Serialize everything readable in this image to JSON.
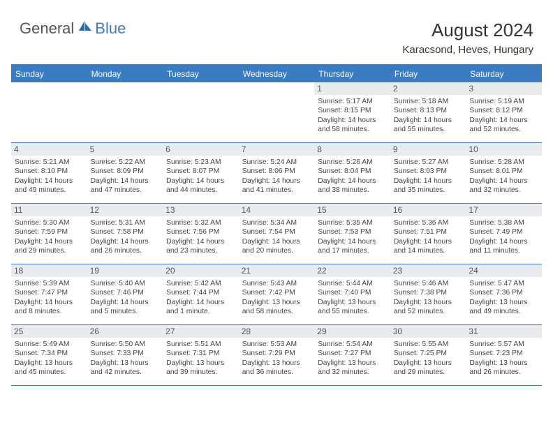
{
  "logo": {
    "part1": "General",
    "part2": "Blue"
  },
  "title": "August 2024",
  "subtitle": "Karacsond, Heves, Hungary",
  "colors": {
    "accent": "#3b7bbf",
    "daynum_bg": "#e9ecef",
    "text": "#444444",
    "title_text": "#333333"
  },
  "day_names": [
    "Sunday",
    "Monday",
    "Tuesday",
    "Wednesday",
    "Thursday",
    "Friday",
    "Saturday"
  ],
  "weeks": [
    [
      null,
      null,
      null,
      null,
      {
        "n": "1",
        "sr": "Sunrise: 5:17 AM",
        "ss": "Sunset: 8:15 PM",
        "dl": "Daylight: 14 hours and 58 minutes."
      },
      {
        "n": "2",
        "sr": "Sunrise: 5:18 AM",
        "ss": "Sunset: 8:13 PM",
        "dl": "Daylight: 14 hours and 55 minutes."
      },
      {
        "n": "3",
        "sr": "Sunrise: 5:19 AM",
        "ss": "Sunset: 8:12 PM",
        "dl": "Daylight: 14 hours and 52 minutes."
      }
    ],
    [
      {
        "n": "4",
        "sr": "Sunrise: 5:21 AM",
        "ss": "Sunset: 8:10 PM",
        "dl": "Daylight: 14 hours and 49 minutes."
      },
      {
        "n": "5",
        "sr": "Sunrise: 5:22 AM",
        "ss": "Sunset: 8:09 PM",
        "dl": "Daylight: 14 hours and 47 minutes."
      },
      {
        "n": "6",
        "sr": "Sunrise: 5:23 AM",
        "ss": "Sunset: 8:07 PM",
        "dl": "Daylight: 14 hours and 44 minutes."
      },
      {
        "n": "7",
        "sr": "Sunrise: 5:24 AM",
        "ss": "Sunset: 8:06 PM",
        "dl": "Daylight: 14 hours and 41 minutes."
      },
      {
        "n": "8",
        "sr": "Sunrise: 5:26 AM",
        "ss": "Sunset: 8:04 PM",
        "dl": "Daylight: 14 hours and 38 minutes."
      },
      {
        "n": "9",
        "sr": "Sunrise: 5:27 AM",
        "ss": "Sunset: 8:03 PM",
        "dl": "Daylight: 14 hours and 35 minutes."
      },
      {
        "n": "10",
        "sr": "Sunrise: 5:28 AM",
        "ss": "Sunset: 8:01 PM",
        "dl": "Daylight: 14 hours and 32 minutes."
      }
    ],
    [
      {
        "n": "11",
        "sr": "Sunrise: 5:30 AM",
        "ss": "Sunset: 7:59 PM",
        "dl": "Daylight: 14 hours and 29 minutes."
      },
      {
        "n": "12",
        "sr": "Sunrise: 5:31 AM",
        "ss": "Sunset: 7:58 PM",
        "dl": "Daylight: 14 hours and 26 minutes."
      },
      {
        "n": "13",
        "sr": "Sunrise: 5:32 AM",
        "ss": "Sunset: 7:56 PM",
        "dl": "Daylight: 14 hours and 23 minutes."
      },
      {
        "n": "14",
        "sr": "Sunrise: 5:34 AM",
        "ss": "Sunset: 7:54 PM",
        "dl": "Daylight: 14 hours and 20 minutes."
      },
      {
        "n": "15",
        "sr": "Sunrise: 5:35 AM",
        "ss": "Sunset: 7:53 PM",
        "dl": "Daylight: 14 hours and 17 minutes."
      },
      {
        "n": "16",
        "sr": "Sunrise: 5:36 AM",
        "ss": "Sunset: 7:51 PM",
        "dl": "Daylight: 14 hours and 14 minutes."
      },
      {
        "n": "17",
        "sr": "Sunrise: 5:38 AM",
        "ss": "Sunset: 7:49 PM",
        "dl": "Daylight: 14 hours and 11 minutes."
      }
    ],
    [
      {
        "n": "18",
        "sr": "Sunrise: 5:39 AM",
        "ss": "Sunset: 7:47 PM",
        "dl": "Daylight: 14 hours and 8 minutes."
      },
      {
        "n": "19",
        "sr": "Sunrise: 5:40 AM",
        "ss": "Sunset: 7:46 PM",
        "dl": "Daylight: 14 hours and 5 minutes."
      },
      {
        "n": "20",
        "sr": "Sunrise: 5:42 AM",
        "ss": "Sunset: 7:44 PM",
        "dl": "Daylight: 14 hours and 1 minute."
      },
      {
        "n": "21",
        "sr": "Sunrise: 5:43 AM",
        "ss": "Sunset: 7:42 PM",
        "dl": "Daylight: 13 hours and 58 minutes."
      },
      {
        "n": "22",
        "sr": "Sunrise: 5:44 AM",
        "ss": "Sunset: 7:40 PM",
        "dl": "Daylight: 13 hours and 55 minutes."
      },
      {
        "n": "23",
        "sr": "Sunrise: 5:46 AM",
        "ss": "Sunset: 7:38 PM",
        "dl": "Daylight: 13 hours and 52 minutes."
      },
      {
        "n": "24",
        "sr": "Sunrise: 5:47 AM",
        "ss": "Sunset: 7:36 PM",
        "dl": "Daylight: 13 hours and 49 minutes."
      }
    ],
    [
      {
        "n": "25",
        "sr": "Sunrise: 5:49 AM",
        "ss": "Sunset: 7:34 PM",
        "dl": "Daylight: 13 hours and 45 minutes."
      },
      {
        "n": "26",
        "sr": "Sunrise: 5:50 AM",
        "ss": "Sunset: 7:33 PM",
        "dl": "Daylight: 13 hours and 42 minutes."
      },
      {
        "n": "27",
        "sr": "Sunrise: 5:51 AM",
        "ss": "Sunset: 7:31 PM",
        "dl": "Daylight: 13 hours and 39 minutes."
      },
      {
        "n": "28",
        "sr": "Sunrise: 5:53 AM",
        "ss": "Sunset: 7:29 PM",
        "dl": "Daylight: 13 hours and 36 minutes."
      },
      {
        "n": "29",
        "sr": "Sunrise: 5:54 AM",
        "ss": "Sunset: 7:27 PM",
        "dl": "Daylight: 13 hours and 32 minutes."
      },
      {
        "n": "30",
        "sr": "Sunrise: 5:55 AM",
        "ss": "Sunset: 7:25 PM",
        "dl": "Daylight: 13 hours and 29 minutes."
      },
      {
        "n": "31",
        "sr": "Sunrise: 5:57 AM",
        "ss": "Sunset: 7:23 PM",
        "dl": "Daylight: 13 hours and 26 minutes."
      }
    ]
  ]
}
